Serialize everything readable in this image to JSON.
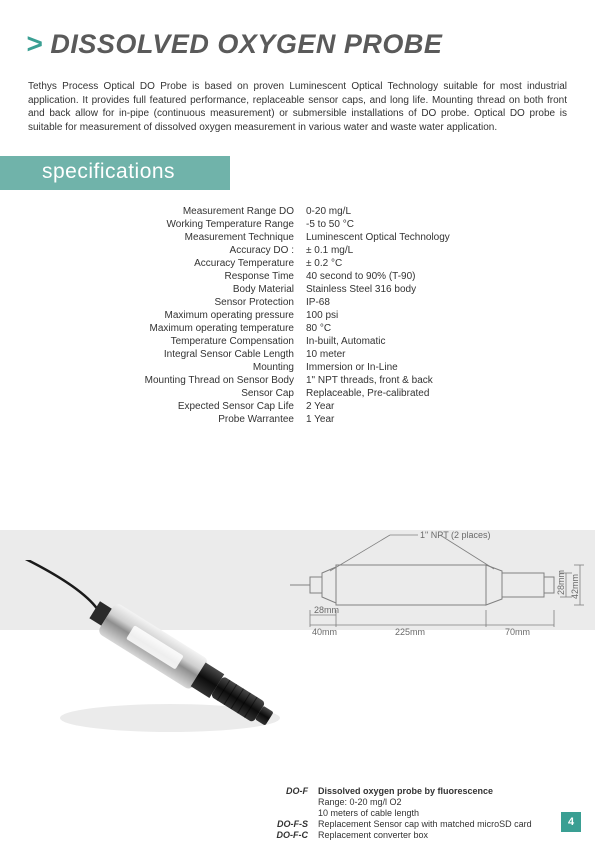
{
  "title": "DISSOLVED OXYGEN PROBE",
  "intro": "Tethys Process Optical DO Probe is based on proven Luminescent Optical Technology suitable for most industrial application. It provides full featured performance, replaceable sensor caps, and long life. Mounting thread on both front and back allow for in-pipe (continuous measurement) or submersible installations of DO probe. Optical DO probe is suitable for measurement of dissolved oxygen measurement in various water and waste water application.",
  "section_label": "specifications",
  "specs": [
    {
      "label": "Measurement Range DO",
      "value": "0-20 mg/L"
    },
    {
      "label": "Working Temperature Range",
      "value": "-5 to 50 °C"
    },
    {
      "label": "Measurement Technique",
      "value": "Luminescent Optical Technology"
    },
    {
      "label": "Accuracy DO :",
      "value": "± 0.1 mg/L"
    },
    {
      "label": "Accuracy Temperature",
      "value": "± 0.2 °C"
    },
    {
      "label": "Response Time",
      "value": "40 second to 90% (T-90)"
    },
    {
      "label": "Body Material",
      "value": "Stainless Steel 316 body"
    },
    {
      "label": "Sensor Protection",
      "value": "IP-68"
    },
    {
      "label": "Maximum operating pressure",
      "value": "100 psi"
    },
    {
      "label": "Maximum operating temperature",
      "value": "80 °C"
    },
    {
      "label": "Temperature Compensation",
      "value": "In-built, Automatic"
    },
    {
      "label": "Integral Sensor Cable Length",
      "value": "10 meter"
    },
    {
      "label": "Mounting",
      "value": "Immersion or In-Line"
    },
    {
      "label": "Mounting Thread on Sensor Body",
      "value": "1\" NPT threads, front & back"
    },
    {
      "label": "Sensor Cap",
      "value": "Replaceable, Pre-calibrated"
    },
    {
      "label": "Expected Sensor Cap Life",
      "value": "2 Year"
    },
    {
      "label": "Probe Warrantee",
      "value": "1 Year"
    }
  ],
  "diagram": {
    "npt_label": "1\" NPT (2 places)",
    "dim_28mm_v": "28mm",
    "dim_42mm_v": "42mm",
    "dim_28mm_h": "28mm",
    "dim_40mm": "40mm",
    "dim_225mm": "225mm",
    "dim_70mm": "70mm",
    "line_color": "#808080",
    "text_color": "#6a6a6a",
    "fontsize": 9,
    "background": "#ebebeb"
  },
  "probe_image": {
    "body_color": "#b8b8b8",
    "highlight_color": "#f0f0f0",
    "cap_color": "#1a1a1a",
    "cable_color": "#1a1a1a"
  },
  "ordering": [
    {
      "code": "DO-F",
      "desc_bold": "Dissolved oxygen probe by fluorescence",
      "desc_extra": [
        "Range: 0-20 mg/l O2",
        "10 meters of cable length"
      ]
    },
    {
      "code": "DO-F-S",
      "desc": "Replacement Sensor cap with matched microSD card"
    },
    {
      "code": "DO-F-C",
      "desc": "Replacement converter box"
    }
  ],
  "page_number": "4"
}
